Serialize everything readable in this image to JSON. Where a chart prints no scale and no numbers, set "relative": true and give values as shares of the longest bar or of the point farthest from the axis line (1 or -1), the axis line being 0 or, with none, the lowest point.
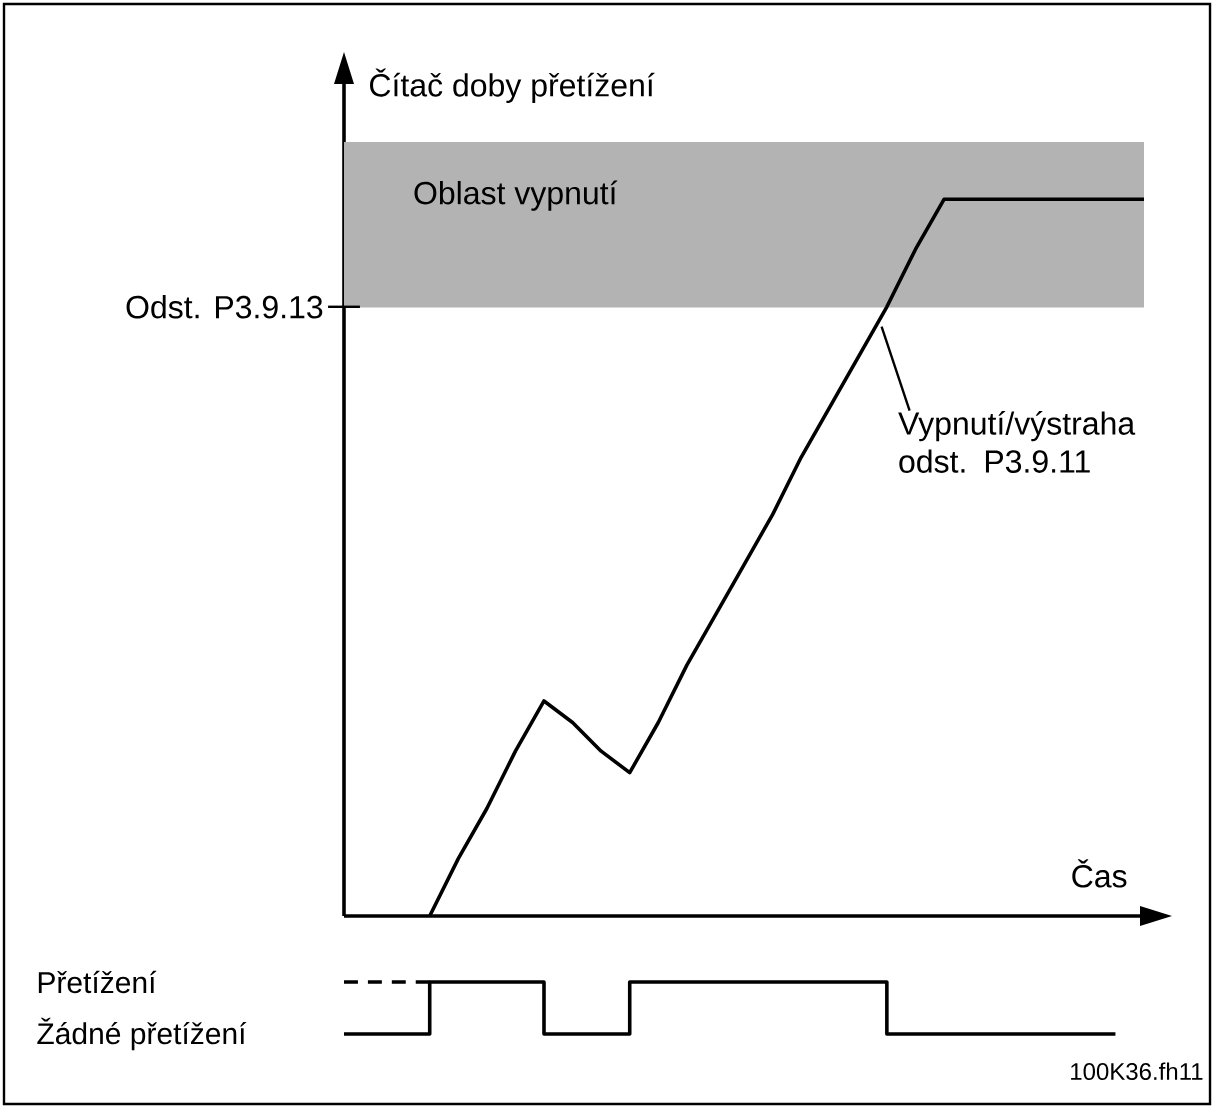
{
  "chart_data": [
    {
      "type": "line",
      "relative": true,
      "tick_labels": false,
      "ylabel": "Čítač doby přetížení",
      "xlabel": "Čas",
      "categories": [
        null,
        null,
        null,
        null,
        null,
        null,
        null,
        null,
        null,
        null,
        null,
        null,
        null,
        null,
        null,
        null,
        null,
        null,
        null,
        null,
        null,
        null,
        null,
        null,
        null,
        null,
        null,
        null,
        null
      ],
      "series": [
        {
          "color": "#000000",
          "values": [
            null,
            null,
            null,
            0,
            0.08,
            0.15,
            0.23,
            0.3,
            0.27,
            0.23,
            0.2,
            0.27,
            0.35,
            0.42,
            0.49,
            0.56,
            0.64,
            0.71,
            0.78,
            0.85,
            0.93,
            1,
            1,
            1,
            1,
            1,
            1,
            1,
            1
          ]
        }
      ],
      "bands": [
        {
          "axis": "y",
          "from": 0.85,
          "to": 1.08,
          "label": "Oblast vypnutí",
          "color": "#b3b3b3"
        }
      ],
      "ref_lines": [
        {
          "axis": "y",
          "value": 0.85,
          "label": "Odst. P3.9.13",
          "color": "#b3b3b3"
        }
      ],
      "annotations": [
        "Vypnutí/výstraha odst. P3.9.11"
      ]
    },
    {
      "type": "step",
      "relative": true,
      "categories": [
        null,
        null,
        null,
        null,
        null,
        null,
        null,
        null,
        null,
        null,
        null,
        null,
        null,
        null,
        null,
        null,
        null,
        null,
        null,
        null,
        null,
        null,
        null,
        null,
        null,
        null,
        null,
        null
      ],
      "series": [
        {
          "color": "#000000",
          "values": [
            0,
            0,
            0,
            1,
            1,
            1,
            1,
            0,
            0,
            0,
            1,
            1,
            1,
            1,
            1,
            1,
            1,
            1,
            1,
            0,
            0,
            0,
            0,
            0,
            0,
            0,
            0,
            0
          ]
        },
        {
          "color": "#000000",
          "line_style": "dashed",
          "values": [
            1,
            1,
            1,
            1,
            null,
            null,
            null,
            null,
            null,
            null,
            null,
            null,
            null,
            null,
            null,
            null,
            null,
            null,
            null,
            null,
            null,
            null,
            null,
            null,
            null,
            null,
            null,
            null
          ]
        }
      ],
      "annotations": [
        "Přetížení",
        "Žádné přetížení",
        "100K36.fh11"
      ]
    }
  ]
}
